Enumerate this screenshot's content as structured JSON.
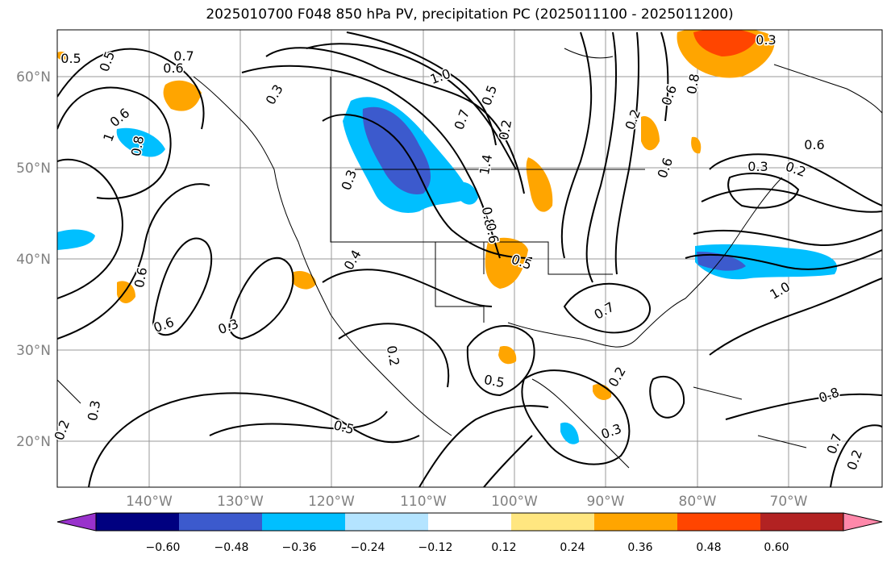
{
  "title": "2025010700 F048 850 hPa PV, precipitation PC (2025011100 - 2025011200)",
  "lat_labels": [
    "60°N",
    "50°N",
    "40°N",
    "30°N",
    "20°N"
  ],
  "lon_labels": [
    "140°W",
    "130°W",
    "120°W",
    "110°W",
    "100°W",
    "90°W",
    "80°W",
    "70°W"
  ],
  "colorbar": {
    "colors": [
      "#9932cc",
      "#000080",
      "#3c5acd",
      "#00bfff",
      "#b4e4ff",
      "#ffffff",
      "#ffe680",
      "#ffa500",
      "#ff4500",
      "#b22222",
      "#ff88aa"
    ],
    "labels": [
      "−0.60",
      "−0.48",
      "−0.36",
      "−0.24",
      "−0.12",
      "0.12",
      "0.24",
      "0.36",
      "0.48",
      "0.60"
    ]
  },
  "contour_labels": [
    "0.5",
    "0.7",
    "0.6",
    "0.3",
    "1",
    "0.8",
    "0.6",
    "0.5",
    "0.3",
    "0.4",
    "1.0",
    "1.4",
    "0.8",
    "0.5",
    "0.7",
    "0.6",
    "0.2",
    "0.5",
    "0.6",
    "0.3",
    "0.2",
    "0.3",
    "0.5",
    "0.2",
    "0.5",
    "0.7",
    "0.6",
    "0.3",
    "0.2",
    "0.6",
    "1.0",
    "0.8",
    "0.7",
    "0.2",
    "0.3",
    "0.2",
    "0.2",
    "0.3",
    "0.6",
    "0.8",
    "0.6"
  ]
}
